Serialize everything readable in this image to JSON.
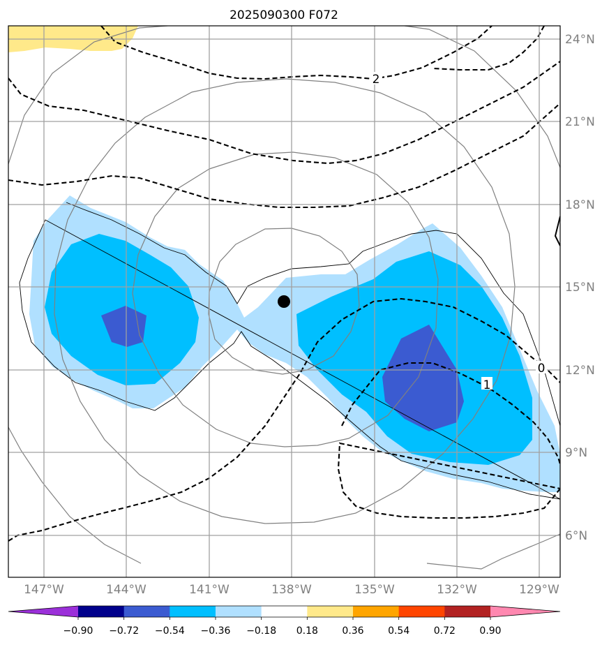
{
  "chart_data": {
    "type": "contour_map",
    "title": "2025090300 F072",
    "x_ticks": [
      "147°W",
      "144°W",
      "141°W",
      "138°W",
      "135°W",
      "132°W",
      "129°W"
    ],
    "y_ticks": [
      "24°N",
      "21°N",
      "18°N",
      "15°N",
      "12°N",
      "9°N",
      "6°N"
    ],
    "lon_range": [
      -148.3,
      -128.3
    ],
    "lat_range": [
      4.5,
      24.5
    ],
    "center_marker": {
      "lon": -138.3,
      "lat": 14.5
    },
    "range_rings_deg": [
      2,
      4,
      6,
      8
    ],
    "colorbar": {
      "levels": [
        "−0.90",
        "−0.72",
        "−0.54",
        "−0.36",
        "−0.18",
        "0.18",
        "0.36",
        "0.54",
        "0.72",
        "0.90"
      ],
      "colors": [
        "#9b30d9",
        "#00008b",
        "#3b5bd1",
        "#00bfff",
        "#b0e0ff",
        "#ffffff",
        "#ffe98a",
        "#ffa500",
        "#ff4500",
        "#b22222",
        "#ff88b0"
      ]
    },
    "contour_labels": [
      {
        "text": "2",
        "lon": -135.0,
        "lat": 23.0
      },
      {
        "text": "0",
        "lon": -128.9,
        "lat": 12.1
      },
      {
        "text": "1",
        "lon": -130.8,
        "lat": 11.0
      }
    ],
    "shaded_regions": [
      {
        "level": "−0.36 to −0.18",
        "color": "#b0e0ff"
      },
      {
        "level": "−0.54 to −0.36",
        "color": "#00bfff"
      },
      {
        "level": "−0.72 to −0.54",
        "color": "#3b5bd1"
      },
      {
        "level": "0.18 to 0.36",
        "color": "#ffe98a"
      }
    ]
  }
}
